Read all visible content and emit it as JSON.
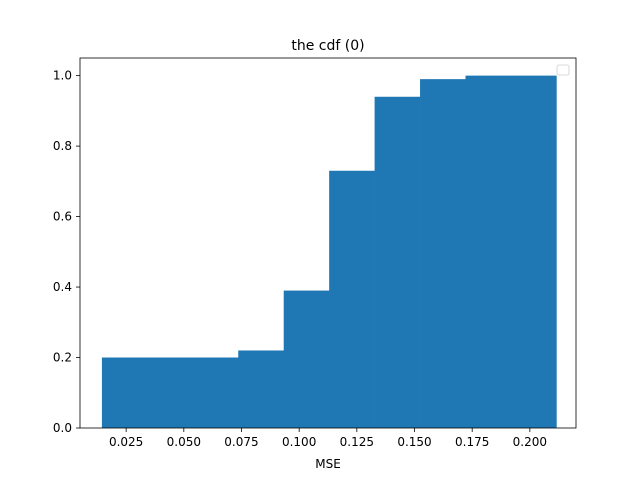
{
  "chart_data": {
    "type": "bar",
    "title": "the cdf (0)",
    "xlabel": "MSE",
    "ylabel": "",
    "bar_color": "#1f77b4",
    "xlim": [
      0.005,
      0.22
    ],
    "ylim": [
      0.0,
      1.05
    ],
    "xticks": [
      0.025,
      0.05,
      0.075,
      0.1,
      0.125,
      0.15,
      0.175,
      0.2
    ],
    "xtick_labels": [
      "0.025",
      "0.050",
      "0.075",
      "0.100",
      "0.125",
      "0.150",
      "0.175",
      "0.200"
    ],
    "yticks": [
      0.0,
      0.2,
      0.4,
      0.6,
      0.8,
      1.0
    ],
    "ytick_labels": [
      "0.0",
      "0.2",
      "0.4",
      "0.6",
      "0.8",
      "1.0"
    ],
    "bin_edges": [
      0.0145,
      0.0342,
      0.0539,
      0.0736,
      0.0933,
      0.113,
      0.1327,
      0.1524,
      0.1721,
      0.1918,
      0.2115
    ],
    "values": [
      0.2,
      0.2,
      0.2,
      0.22,
      0.39,
      0.73,
      0.94,
      0.99,
      1.0,
      1.0
    ],
    "grid": false,
    "legend": {
      "placement": "upper right",
      "entries": []
    }
  }
}
